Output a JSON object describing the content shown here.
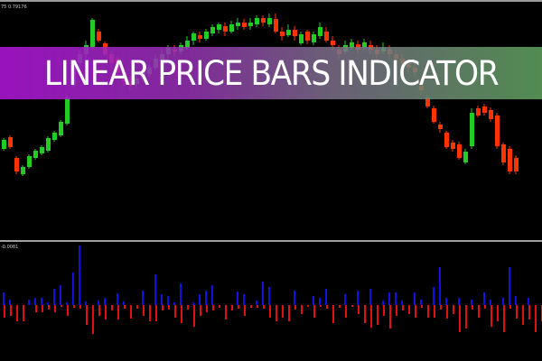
{
  "banner": {
    "title": "LINEAR PRICE BARS INDICATOR"
  },
  "price_panel": {
    "scale_label": "75 0.79176"
  },
  "indicator_panel": {
    "scale_label": "-0.0081"
  },
  "colors": {
    "bull": "#22cc22",
    "bear": "#ff3300",
    "hist_up": "#1010e0",
    "hist_down": "#e01010",
    "separator": "#a0a0a0"
  },
  "chart_data": {
    "type": "candlestick",
    "candles": [
      [
        100,
        110,
        112,
        98
      ],
      [
        113,
        102,
        115,
        100
      ],
      [
        90,
        75,
        92,
        72
      ],
      [
        72,
        80,
        82,
        70
      ],
      [
        80,
        92,
        94,
        78
      ],
      [
        90,
        98,
        100,
        88
      ],
      [
        95,
        102,
        104,
        93
      ],
      [
        98,
        112,
        114,
        96
      ],
      [
        110,
        118,
        120,
        108
      ],
      [
        115,
        130,
        132,
        113
      ],
      [
        128,
        157,
        160,
        126
      ],
      [
        170,
        195,
        200,
        168
      ],
      [
        195,
        205,
        210,
        190
      ],
      [
        205,
        215,
        220,
        200
      ],
      [
        213,
        243,
        245,
        211
      ],
      [
        230,
        220,
        233,
        218
      ],
      [
        217,
        205,
        219,
        203
      ],
      [
        205,
        195,
        208,
        190
      ],
      [
        200,
        185,
        203,
        180
      ],
      [
        185,
        175,
        190,
        170
      ],
      [
        175,
        170,
        180,
        165
      ],
      [
        172,
        178,
        182,
        168
      ],
      [
        178,
        185,
        190,
        175
      ],
      [
        183,
        190,
        193,
        180
      ],
      [
        190,
        200,
        205,
        188
      ],
      [
        198,
        205,
        210,
        195
      ],
      [
        205,
        212,
        215,
        200
      ],
      [
        210,
        208,
        215,
        203
      ],
      [
        208,
        215,
        218,
        205
      ],
      [
        212,
        220,
        225,
        210
      ],
      [
        220,
        228,
        230,
        215
      ],
      [
        226,
        222,
        230,
        218
      ],
      [
        222,
        230,
        233,
        220
      ],
      [
        228,
        235,
        238,
        225
      ],
      [
        232,
        238,
        240,
        228
      ],
      [
        236,
        230,
        240,
        225
      ],
      [
        230,
        238,
        242,
        228
      ],
      [
        236,
        240,
        245,
        232
      ],
      [
        240,
        235,
        244,
        232
      ],
      [
        236,
        240,
        245,
        232
      ],
      [
        238,
        245,
        248,
        235
      ],
      [
        245,
        240,
        248,
        236
      ],
      [
        238,
        245,
        250,
        235
      ],
      [
        244,
        230,
        250,
        228
      ],
      [
        230,
        225,
        235,
        220
      ],
      [
        226,
        232,
        238,
        224
      ],
      [
        232,
        225,
        236,
        220
      ],
      [
        217,
        227,
        230,
        215
      ],
      [
        230,
        220,
        232,
        216
      ],
      [
        218,
        227,
        230,
        215
      ],
      [
        225,
        235,
        240,
        222
      ],
      [
        230,
        220,
        235,
        218
      ],
      [
        220,
        215,
        225,
        210
      ],
      [
        210,
        205,
        215,
        200
      ],
      [
        208,
        215,
        220,
        205
      ],
      [
        212,
        218,
        222,
        210
      ],
      [
        216,
        210,
        220,
        206
      ],
      [
        212,
        218,
        222,
        208
      ],
      [
        215,
        210,
        220,
        205
      ],
      [
        210,
        205,
        215,
        200
      ],
      [
        208,
        212,
        218,
        205
      ],
      [
        210,
        205,
        215,
        200
      ],
      [
        205,
        200,
        210,
        195
      ],
      [
        200,
        195,
        205,
        190
      ],
      [
        195,
        190,
        200,
        185
      ],
      [
        190,
        185,
        195,
        180
      ],
      [
        170,
        165,
        175,
        160
      ],
      [
        157,
        147,
        160,
        145
      ],
      [
        145,
        130,
        148,
        128
      ],
      [
        127,
        122,
        130,
        118
      ],
      [
        118,
        102,
        120,
        100
      ],
      [
        107,
        100,
        110,
        97
      ],
      [
        105,
        90,
        108,
        88
      ],
      [
        85,
        97,
        100,
        83
      ],
      [
        103,
        140,
        145,
        100
      ],
      [
        145,
        137,
        148,
        135
      ],
      [
        147,
        140,
        150,
        137
      ],
      [
        143,
        133,
        146,
        130
      ],
      [
        137,
        103,
        140,
        100
      ],
      [
        105,
        85,
        107,
        82
      ],
      [
        100,
        75,
        103,
        72
      ],
      [
        90,
        75,
        93,
        72
      ]
    ],
    "histogram": [
      [
        14,
        -14
      ],
      [
        6,
        -12
      ],
      [
        0,
        -18
      ],
      [
        0,
        -18
      ],
      [
        6,
        0
      ],
      [
        8,
        -8
      ],
      [
        8,
        -8
      ],
      [
        3,
        -5
      ],
      [
        18,
        -8
      ],
      [
        22,
        -2
      ],
      [
        3,
        -12
      ],
      [
        36,
        -3
      ],
      [
        66,
        -4
      ],
      [
        4,
        -22
      ],
      [
        0,
        -32
      ],
      [
        5,
        -12
      ],
      [
        8,
        -16
      ],
      [
        0,
        -6
      ],
      [
        13,
        -16
      ],
      [
        4,
        -4
      ],
      [
        0,
        -15
      ],
      [
        0,
        -4
      ],
      [
        16,
        -12
      ],
      [
        0,
        -18
      ],
      [
        34,
        -18
      ],
      [
        12,
        -6
      ],
      [
        10,
        -5
      ],
      [
        3,
        -14
      ],
      [
        24,
        -20
      ],
      [
        0,
        -5
      ],
      [
        3,
        -24
      ],
      [
        12,
        -12
      ],
      [
        16,
        -8
      ],
      [
        22,
        -6
      ],
      [
        0,
        -3
      ],
      [
        0,
        -16
      ],
      [
        0,
        -6
      ],
      [
        15,
        -4
      ],
      [
        12,
        -12
      ],
      [
        0,
        -3
      ],
      [
        5,
        -3
      ],
      [
        26,
        -4
      ],
      [
        20,
        -14
      ],
      [
        0,
        -18
      ],
      [
        0,
        -14
      ],
      [
        0,
        -18
      ],
      [
        16,
        -5
      ],
      [
        0,
        -10
      ],
      [
        0,
        -2
      ],
      [
        10,
        -14
      ],
      [
        8,
        -2
      ],
      [
        18,
        -4
      ],
      [
        0,
        -20
      ],
      [
        0,
        -3
      ],
      [
        12,
        -14
      ],
      [
        0,
        -2
      ],
      [
        16,
        -10
      ],
      [
        0,
        -20
      ],
      [
        18,
        -25
      ],
      [
        0,
        -22
      ],
      [
        5,
        -12
      ],
      [
        14,
        -26
      ],
      [
        14,
        -12
      ],
      [
        5,
        -6
      ],
      [
        0,
        -10
      ],
      [
        14,
        -14
      ],
      [
        6,
        -3
      ],
      [
        0,
        -14
      ],
      [
        20,
        -14
      ],
      [
        42,
        -5
      ],
      [
        8,
        -15
      ],
      [
        0,
        -10
      ],
      [
        8,
        -30
      ],
      [
        0,
        -26
      ],
      [
        6,
        -5
      ],
      [
        0,
        -14
      ],
      [
        14,
        -4
      ],
      [
        6,
        -24
      ],
      [
        0,
        -18
      ],
      [
        8,
        -30
      ],
      [
        42,
        -4
      ],
      [
        10,
        -15
      ],
      [
        0,
        -22
      ],
      [
        8,
        -16
      ],
      [
        0,
        -30
      ],
      [
        0,
        -18
      ]
    ]
  }
}
